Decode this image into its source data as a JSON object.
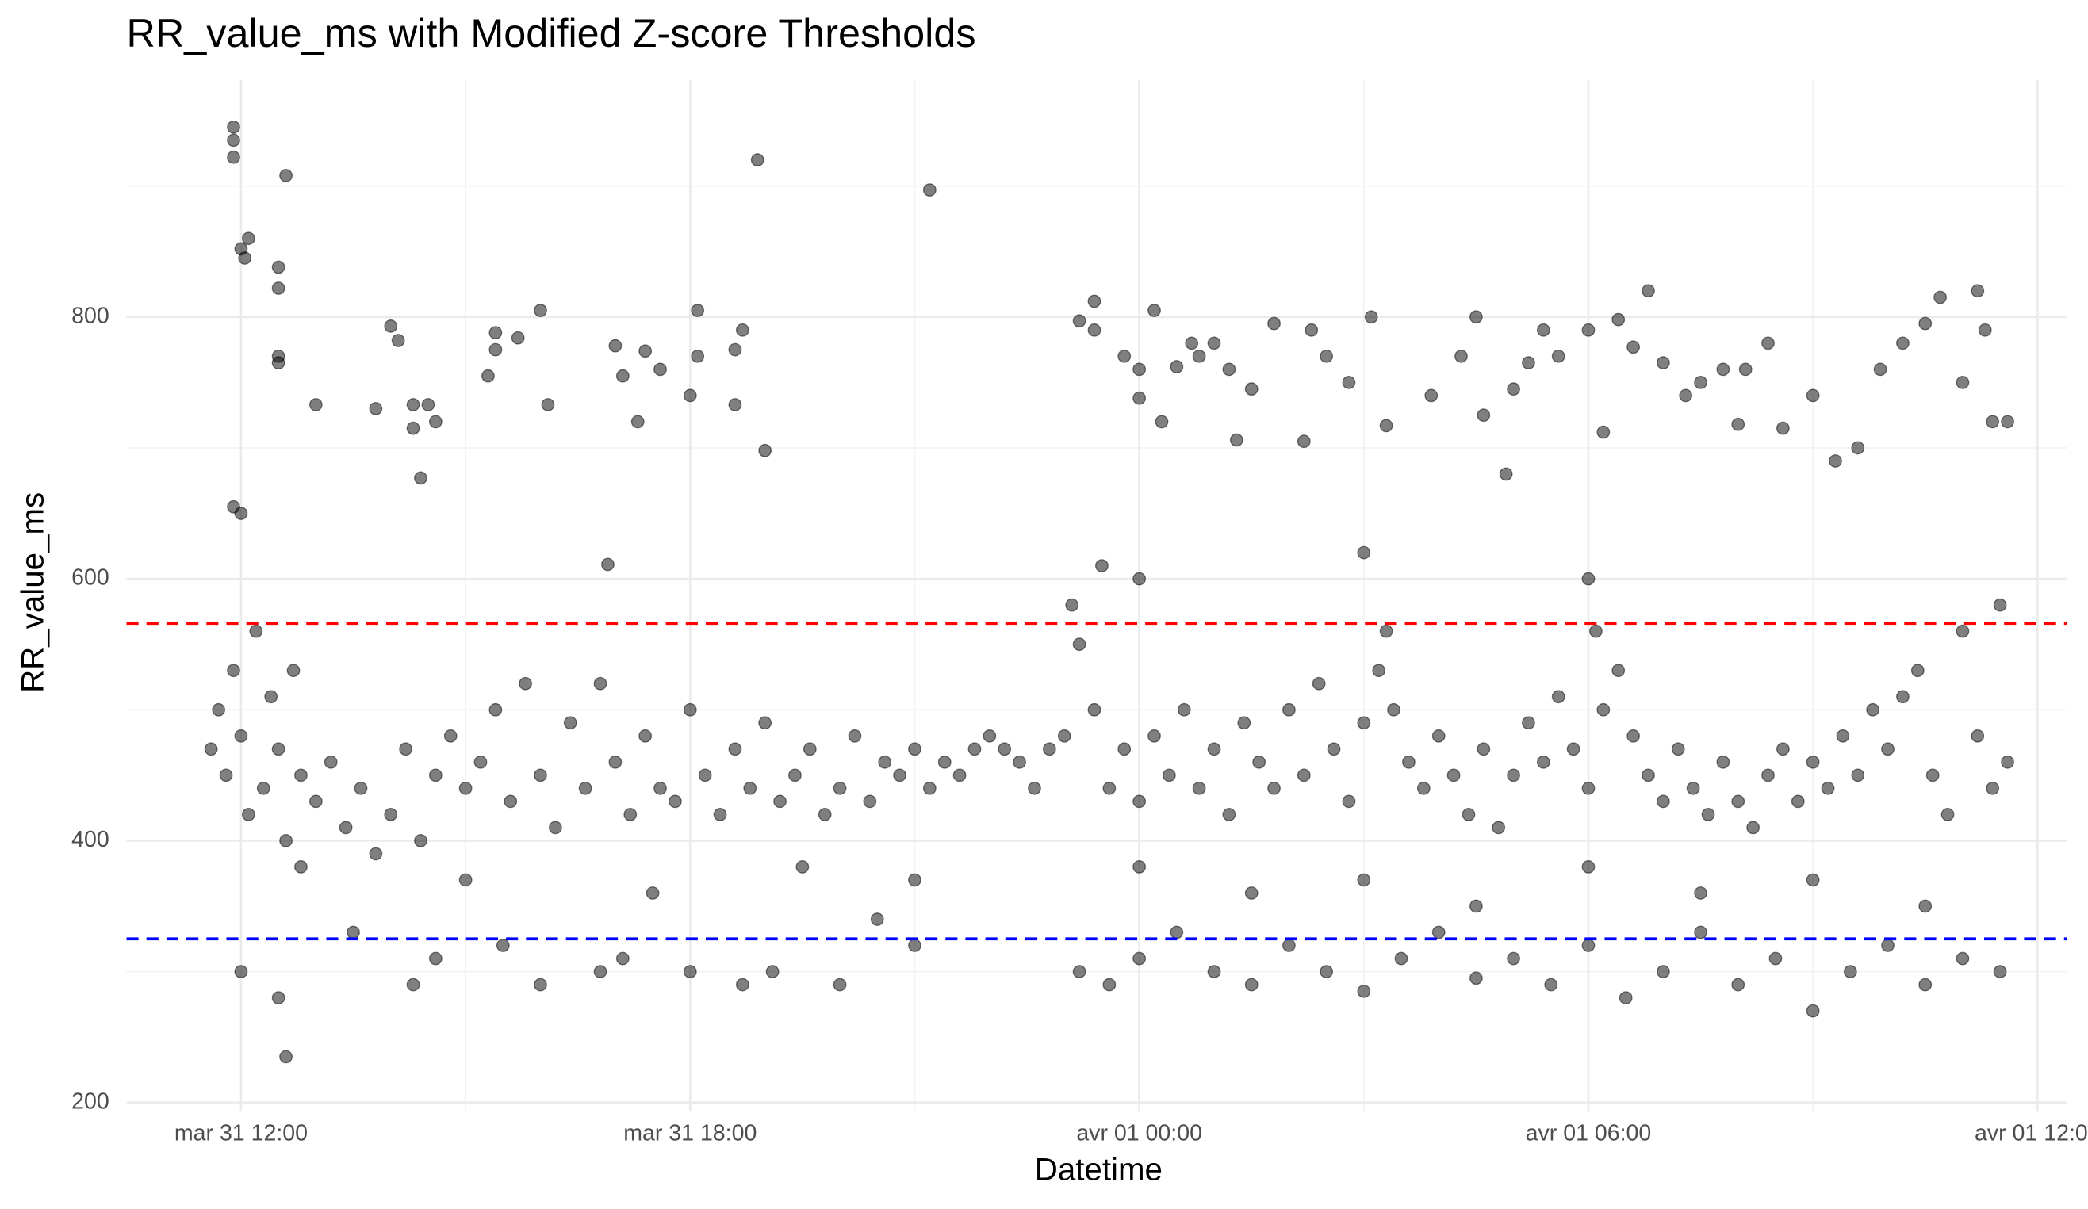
{
  "chart_data": {
    "type": "scatter",
    "title": "RR_value_ms with Modified Z-score Thresholds",
    "x_label": "Datetime",
    "y_label": "RR_value_ms",
    "xlim": [
      10.47,
      36.39
    ],
    "ylim": [
      193,
      981
    ],
    "xticks": [
      {
        "value": 12,
        "label": "mar 31 12:00"
      },
      {
        "value": 18,
        "label": "mar 31 18:00"
      },
      {
        "value": 24,
        "label": "avr 01 00:00"
      },
      {
        "value": 30,
        "label": "avr 01 06:00"
      },
      {
        "value": 36,
        "label": "avr 01 12:00"
      }
    ],
    "yticks": [
      200,
      400,
      600,
      800
    ],
    "xminorticks": [
      15,
      21,
      27,
      33
    ],
    "yminorticks": [
      300,
      500,
      700,
      900
    ],
    "grid": true,
    "color": "#000000",
    "hlines": [
      {
        "value": 566,
        "color": "#ff0000"
      },
      {
        "value": 325,
        "color": "#0000ff"
      }
    ],
    "x": [
      11.9,
      11.9,
      11.9,
      12.0,
      12.1,
      12.05,
      12.6,
      12.5,
      12.5,
      12.5,
      12.5,
      13.0,
      13.8,
      14.0,
      14.1,
      14.3,
      14.3,
      14.5,
      14.4,
      14.6,
      15.3,
      15.4,
      15.4,
      15.7,
      16.0,
      16.1,
      17.0,
      17.1,
      17.3,
      17.4,
      17.6,
      18.0,
      18.1,
      18.1,
      18.6,
      18.6,
      18.7,
      18.9,
      19.0,
      21.2,
      11.9,
      12.0,
      16.9,
      23.2,
      23.4,
      23.4,
      23.8,
      24.0,
      24.0,
      24.2,
      24.3,
      24.5,
      24.7,
      24.8,
      25.0,
      25.2,
      25.3,
      25.5,
      25.8,
      26.2,
      26.3,
      26.5,
      26.8,
      27.1,
      27.3,
      27.9,
      28.3,
      28.5,
      28.6,
      28.9,
      29.0,
      29.2,
      29.4,
      29.6,
      30.0,
      30.2,
      30.4,
      30.6,
      30.8,
      31.0,
      31.3,
      31.5,
      31.8,
      32.0,
      32.1,
      32.4,
      32.6,
      33.0,
      33.3,
      33.6,
      33.9,
      34.2,
      34.5,
      34.7,
      35.0,
      35.2,
      35.3,
      35.4,
      35.6,
      27.0,
      24.0,
      30.0,
      23.5,
      11.6,
      11.7,
      11.8,
      11.9,
      12.0,
      12.1,
      12.2,
      12.3,
      12.4,
      12.5,
      12.6,
      12.7,
      12.8,
      13.0,
      13.2,
      13.4,
      13.6,
      13.8,
      14.0,
      14.2,
      14.4,
      14.6,
      14.8,
      15.0,
      15.2,
      15.4,
      15.6,
      15.8,
      16.0,
      16.2,
      16.4,
      16.6,
      16.8,
      17.0,
      17.2,
      17.4,
      17.6,
      17.8,
      18.0,
      18.2,
      18.4,
      18.6,
      18.8,
      19.0,
      19.2,
      19.4,
      19.6,
      19.8,
      20.0,
      20.2,
      20.4,
      20.6,
      20.8,
      21.0,
      21.2,
      21.4,
      21.6,
      21.8,
      22.0,
      22.2,
      22.4,
      22.6,
      22.8,
      23.0,
      23.2,
      23.4,
      23.6,
      23.8,
      24.0,
      24.2,
      24.4,
      24.6,
      24.8,
      25.0,
      25.2,
      25.4,
      25.6,
      25.8,
      26.0,
      26.2,
      26.4,
      26.6,
      26.8,
      27.0,
      27.2,
      27.4,
      27.6,
      27.8,
      28.0,
      28.2,
      28.4,
      28.6,
      28.8,
      29.0,
      29.2,
      29.4,
      29.6,
      29.8,
      30.0,
      30.2,
      30.4,
      30.6,
      30.8,
      31.0,
      31.2,
      31.4,
      31.6,
      31.8,
      32.0,
      32.2,
      32.4,
      32.6,
      32.8,
      33.0,
      33.2,
      33.4,
      33.6,
      33.8,
      34.0,
      34.2,
      34.4,
      34.6,
      34.8,
      35.0,
      35.2,
      35.4,
      35.6,
      35.5,
      23.1,
      27.3,
      30.1,
      12.0,
      12.5,
      12.6,
      13.5,
      14.3,
      14.6,
      15.5,
      16.0,
      16.8,
      17.1,
      18.0,
      18.7,
      19.1,
      20.0,
      20.5,
      21.0,
      23.2,
      23.6,
      24.0,
      24.5,
      25.0,
      25.5,
      26.0,
      26.5,
      27.0,
      27.5,
      28.0,
      28.5,
      29.0,
      29.5,
      30.0,
      30.5,
      31.0,
      31.5,
      32.0,
      32.5,
      33.0,
      33.5,
      34.0,
      34.5,
      35.0,
      35.5,
      24.0,
      25.5,
      27.0,
      28.5,
      30.0,
      31.5,
      33.0,
      34.5,
      12.8,
      15.0,
      17.5,
      19.5,
      21.0
    ],
    "values": [
      945,
      935,
      922,
      852,
      860,
      845,
      908,
      838,
      822,
      770,
      765,
      733,
      730,
      793,
      782,
      715,
      733,
      733,
      677,
      720,
      755,
      775,
      788,
      784,
      805,
      733,
      778,
      755,
      720,
      774,
      760,
      740,
      770,
      805,
      733,
      775,
      790,
      920,
      698,
      897,
      655,
      650,
      611,
      797,
      812,
      790,
      770,
      760,
      738,
      805,
      720,
      762,
      780,
      770,
      780,
      760,
      706,
      745,
      795,
      705,
      790,
      770,
      750,
      800,
      717,
      740,
      770,
      800,
      725,
      680,
      745,
      765,
      790,
      770,
      790,
      712,
      798,
      777,
      820,
      765,
      740,
      750,
      760,
      718,
      760,
      780,
      715,
      740,
      690,
      700,
      760,
      780,
      795,
      815,
      750,
      820,
      790,
      720,
      720,
      620,
      600,
      600,
      610,
      470,
      500,
      450,
      530,
      480,
      420,
      560,
      440,
      510,
      470,
      400,
      530,
      450,
      430,
      460,
      410,
      440,
      390,
      420,
      470,
      400,
      450,
      480,
      440,
      460,
      500,
      430,
      520,
      450,
      410,
      490,
      440,
      520,
      460,
      420,
      480,
      440,
      430,
      500,
      450,
      420,
      470,
      440,
      490,
      430,
      450,
      470,
      420,
      440,
      480,
      430,
      460,
      450,
      470,
      440,
      460,
      450,
      470,
      480,
      470,
      460,
      440,
      470,
      480,
      550,
      500,
      440,
      470,
      430,
      480,
      450,
      500,
      440,
      470,
      420,
      490,
      460,
      440,
      500,
      450,
      520,
      470,
      430,
      490,
      530,
      500,
      460,
      440,
      480,
      450,
      420,
      470,
      410,
      450,
      490,
      460,
      510,
      470,
      440,
      500,
      530,
      480,
      450,
      430,
      470,
      440,
      420,
      460,
      430,
      410,
      450,
      470,
      430,
      460,
      440,
      480,
      450,
      500,
      470,
      510,
      530,
      450,
      420,
      560,
      480,
      440,
      460,
      580,
      580,
      560,
      560,
      300,
      280,
      235,
      330,
      290,
      310,
      320,
      290,
      300,
      310,
      300,
      290,
      300,
      290,
      340,
      320,
      300,
      290,
      310,
      330,
      300,
      290,
      320,
      300,
      285,
      310,
      330,
      295,
      310,
      290,
      320,
      280,
      300,
      330,
      290,
      310,
      270,
      300,
      320,
      290,
      310,
      300,
      380,
      360,
      370,
      350,
      380,
      360,
      370,
      350,
      380,
      370,
      360,
      380,
      370
    ]
  }
}
